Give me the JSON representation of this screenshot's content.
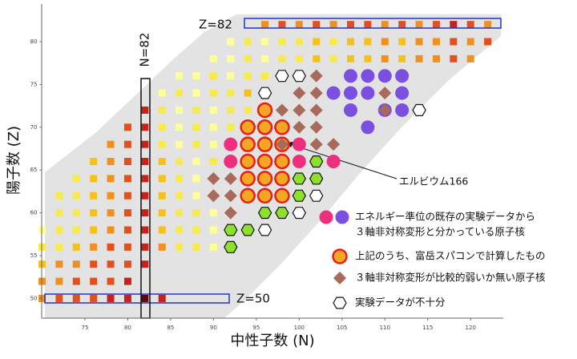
{
  "chart_data": {
    "type": "scatter",
    "x_label": "中性子数 (N)",
    "y_label": "陽子数 (Z)",
    "xlim": [
      70,
      124
    ],
    "ylim": [
      47.7,
      84.4
    ],
    "xticks": [
      75,
      80,
      85,
      90,
      95,
      100,
      105,
      110,
      115,
      120
    ],
    "yticks": [
      50,
      55,
      60,
      65,
      70,
      75,
      80
    ],
    "annotations": [
      "Z=82",
      "N=82",
      "Z=50",
      "エルビウム166"
    ],
    "cells": [
      {
        "y": 82,
        "x": [
          96,
          98,
          100,
          102,
          104,
          106,
          108,
          110,
          112,
          114,
          116,
          118,
          120,
          122
        ],
        "colors": [
          "#f0901e",
          "#e4501b",
          "#f0901e",
          "#e4501b",
          "#f0901e",
          "#e4501b",
          "#e4501b",
          "#f0901e",
          "#e4501b",
          "#f0901e",
          "#e4501b",
          "#c8201a",
          "#e4501b",
          "#f0901e"
        ]
      },
      {
        "y": 80,
        "x": [
          92,
          94,
          96,
          98,
          100,
          102,
          104,
          106,
          108,
          110,
          112,
          114,
          116,
          118,
          120,
          122
        ],
        "colors": [
          "#ffff99",
          "#f7ea4a",
          "#ffff99",
          "#f7ea4a",
          "#f7ea4a",
          "#f5c21b",
          "#f7ea4a",
          "#f5c21b",
          "#f5c21b",
          "#f0901e",
          "#f5c21b",
          "#f0901e",
          "#f0901e",
          "#e4501b",
          "#f0901e",
          "#e4501b"
        ]
      },
      {
        "y": 78,
        "x": [
          90,
          92,
          94,
          96,
          98,
          100,
          102,
          104,
          106,
          108,
          110,
          112,
          114,
          116,
          118,
          120
        ],
        "colors": [
          "#ffff99",
          "#ffff99",
          "#f7ea4a",
          "#ffff99",
          "#f7ea4a",
          "#f7ea4a",
          "#f5c21b",
          "#f7ea4a",
          "#f5c21b",
          "#f5c21b",
          "#f0901e",
          "#f5c21b",
          "#f0901e",
          "#f0901e",
          "#e4501b",
          "#f0901e"
        ]
      },
      {
        "y": 76,
        "x": [
          86,
          88,
          90,
          92,
          94,
          96
        ],
        "colors": [
          "#ffff99",
          "#ffff99",
          "#f7ea4a",
          "#ffff99",
          "#f7ea4a",
          "#f7ea4a"
        ]
      },
      {
        "y": 74,
        "x": [
          84,
          86,
          88,
          90,
          92,
          94
        ],
        "colors": [
          "#ffff99",
          "#f7ea4a",
          "#ffff99",
          "#f7ea4a",
          "#f7ea4a",
          "#f5c21b"
        ]
      },
      {
        "y": 72,
        "x": [
          82,
          84,
          86,
          88,
          90,
          92,
          94
        ],
        "colors": [
          "#c8201a",
          "#f7ea4a",
          "#ffff99",
          "#f7ea4a",
          "#ffff99",
          "#f7ea4a",
          "#f7ea4a"
        ]
      },
      {
        "y": 70,
        "x": [
          80,
          82,
          84,
          86,
          88,
          90,
          92
        ],
        "colors": [
          "#e4501b",
          "#c8201a",
          "#f7ea4a",
          "#ffff99",
          "#f7ea4a",
          "#ffff99",
          "#f7ea4a"
        ]
      },
      {
        "y": 68,
        "x": [
          78,
          80,
          82,
          84,
          86,
          88,
          90
        ],
        "colors": [
          "#f0901e",
          "#e4501b",
          "#c8201a",
          "#f7ea4a",
          "#ffff99",
          "#f7ea4a",
          "#ffff99"
        ]
      },
      {
        "y": 66,
        "x": [
          76,
          78,
          80,
          82,
          84,
          86,
          88,
          90
        ],
        "colors": [
          "#f5c21b",
          "#f0901e",
          "#e4501b",
          "#c8201a",
          "#f5c21b",
          "#f7ea4a",
          "#ffff99",
          "#f7ea4a"
        ]
      },
      {
        "y": 64,
        "x": [
          74,
          76,
          78,
          80,
          82,
          84,
          86,
          88
        ],
        "colors": [
          "#f7ea4a",
          "#f5c21b",
          "#f0901e",
          "#e4501b",
          "#c8201a",
          "#f5c21b",
          "#f7ea4a",
          "#ffff99"
        ]
      },
      {
        "y": 62,
        "x": [
          72,
          74,
          76,
          78,
          80,
          82,
          84,
          86,
          88
        ],
        "colors": [
          "#f7ea4a",
          "#f7ea4a",
          "#f5c21b",
          "#f0901e",
          "#e4501b",
          "#c8201a",
          "#f5c21b",
          "#f7ea4a",
          "#ffff99"
        ]
      },
      {
        "y": 60,
        "x": [
          72,
          74,
          76,
          78,
          80,
          82,
          84,
          86,
          88,
          90
        ],
        "colors": [
          "#f7ea4a",
          "#f7ea4a",
          "#f5c21b",
          "#f0901e",
          "#e4501b",
          "#c8201a",
          "#f5c21b",
          "#f7ea4a",
          "#f7ea4a",
          "#ffff99"
        ]
      },
      {
        "y": 58,
        "x": [
          70,
          72,
          74,
          76,
          78,
          80,
          82,
          84,
          86,
          88,
          90
        ],
        "colors": [
          "#ffff99",
          "#f7ea4a",
          "#f7ea4a",
          "#f5c21b",
          "#f0901e",
          "#e4501b",
          "#c8201a",
          "#f5c21b",
          "#f7ea4a",
          "#f7ea4a",
          "#ffff99"
        ]
      },
      {
        "y": 56,
        "x": [
          70,
          72,
          74,
          76,
          78,
          80,
          82,
          84,
          86,
          88,
          90
        ],
        "colors": [
          "#f7ea4a",
          "#f7ea4a",
          "#f5c21b",
          "#f0901e",
          "#e4501b",
          "#e4501b",
          "#c8201a",
          "#f0901e",
          "#f7ea4a",
          "#f7ea4a",
          "#ffff99"
        ]
      },
      {
        "y": 54,
        "x": [
          70,
          72,
          74,
          76,
          78,
          80,
          82
        ],
        "colors": [
          "#f5c21b",
          "#f0901e",
          "#f0901e",
          "#e4501b",
          "#e4501b",
          "#e4501b",
          "#c8201a"
        ]
      },
      {
        "y": 52,
        "x": [
          70,
          72,
          74,
          76,
          78,
          80
        ],
        "colors": [
          "#f0901e",
          "#f0901e",
          "#e4501b",
          "#e4501b",
          "#e4501b",
          "#c8201a"
        ]
      },
      {
        "y": 50,
        "x": [
          70,
          72,
          74,
          76,
          78,
          80,
          82,
          84
        ],
        "colors": [
          "#f0901e",
          "#e4501b",
          "#e4501b",
          "#e4501b",
          "#c8201a",
          "#c8201a",
          "#5a0a0a",
          "#c8201a"
        ]
      }
    ],
    "series": [
      {
        "marker": "hexagon",
        "color": "#8ee02a",
        "x": [
          102,
          100,
          102,
          100,
          96,
          98,
          92,
          94,
          92
        ],
        "y": [
          66,
          64,
          64,
          62,
          60,
          60,
          58,
          58,
          56
        ]
      },
      {
        "name": [
          "エネルギー準位の既存の実験データから",
          "３軸非対称変形と分かっている原子核"
        ],
        "marker": "circle",
        "color": "#ee2f7e",
        "x": [
          92,
          100,
          92,
          100,
          104
        ],
        "y": [
          68,
          68,
          66,
          66,
          66
        ]
      },
      {
        "marker": "circle",
        "color": "#7b4fe0",
        "x": [
          106,
          108,
          110,
          112,
          104,
          106,
          108,
          112,
          106,
          110,
          112,
          108
        ],
        "y": [
          76,
          76,
          76,
          76,
          74,
          74,
          74,
          74,
          72,
          72,
          72,
          70
        ]
      },
      {
        "name": "上記のうち、富岳スパコンで計算したもの",
        "marker": "ring",
        "color": "#f5a623",
        "x": [
          96,
          94,
          96,
          98,
          94,
          96,
          98,
          94,
          96,
          98,
          94,
          96,
          98,
          94,
          96,
          98
        ],
        "y": [
          72,
          70,
          70,
          70,
          68,
          68,
          68,
          66,
          66,
          66,
          64,
          64,
          64,
          62,
          62,
          62
        ]
      },
      {
        "name": "３軸非対称変形が比較的弱いか無い原子核",
        "marker": "diamond",
        "color": "#a86a5a",
        "x": [
          102,
          100,
          102,
          110,
          98,
          100,
          102,
          110,
          100,
          102,
          98,
          102,
          104,
          90,
          92,
          90,
          92,
          92
        ],
        "y": [
          76,
          74,
          74,
          74,
          72,
          72,
          72,
          72,
          70,
          70,
          68,
          68,
          68,
          64,
          64,
          62,
          62,
          60
        ]
      },
      {
        "name": "実験データが不十分",
        "marker": "hexagon",
        "color": "#ffffff",
        "x": [
          98,
          100,
          96,
          114,
          102,
          100,
          96
        ],
        "y": [
          76,
          76,
          74,
          72,
          62,
          60,
          58
        ]
      }
    ]
  }
}
